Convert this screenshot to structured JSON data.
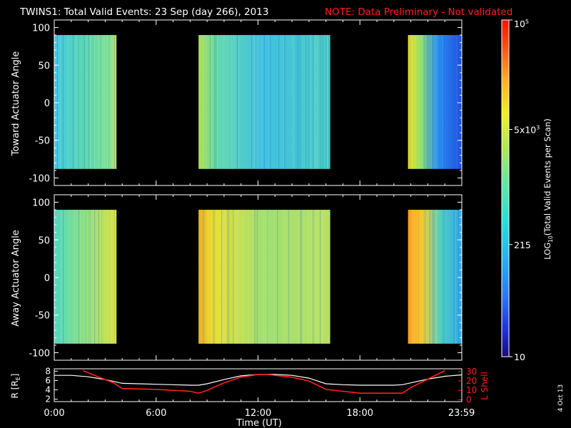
{
  "header": {
    "title": "TWINS1: Total Valid Events: 23 Sep (day 266), 2013",
    "note": "NOTE: Data Preliminary - Not validated"
  },
  "side_date": "4 Oct 13",
  "colors": {
    "background": "#000000",
    "note": "#ff2020",
    "orbit_r": "#ffffff",
    "orbit_lshell": "#ff2020"
  },
  "colorbar": {
    "label_prefix": "LOG",
    "label_sub": "10",
    "label_suffix": "(Total Valid Events per Scan)",
    "ticks": [
      {
        "text": "10",
        "value": 10
      },
      {
        "text": "215",
        "value": 215
      },
      {
        "text": "5x10",
        "sup": "3",
        "value": 5000
      },
      {
        "text": "10",
        "sup": "5",
        "value": 100000
      }
    ],
    "range": [
      10,
      100000
    ],
    "scale": "log",
    "colormap": "rainbow"
  },
  "chart_data": [
    {
      "type": "heatmap",
      "ylabel": "Toward Actuator Angle",
      "ylim": [
        -110,
        110
      ],
      "yticks": [
        "100",
        "50",
        "0",
        "-50",
        "-100"
      ],
      "data_y_range": [
        -88,
        90
      ],
      "xlim_hours": [
        0,
        24
      ],
      "intervals": [
        {
          "start": "0:00",
          "end": "3:40",
          "level": "green-cyan"
        },
        {
          "start": "8:30",
          "end": "16:15",
          "level": "green-cyan"
        },
        {
          "start": "20:50",
          "end": "23:59",
          "level": "yellow to blue"
        }
      ]
    },
    {
      "type": "heatmap",
      "ylabel": "Away Actuator Angle",
      "ylim": [
        -110,
        110
      ],
      "yticks": [
        "100",
        "50",
        "0",
        "-50",
        "-100"
      ],
      "data_y_range": [
        -88,
        90
      ],
      "xlim_hours": [
        0,
        24
      ],
      "intervals": [
        {
          "start": "0:00",
          "end": "3:40",
          "level": "green-yellow"
        },
        {
          "start": "8:30",
          "end": "16:15",
          "level": "yellow-green"
        },
        {
          "start": "20:50",
          "end": "23:59",
          "level": "orange to cyan"
        }
      ]
    },
    {
      "type": "line",
      "xlabel": "Time (UT)",
      "xticks": [
        "0:00",
        "6:00",
        "12:00",
        "18:00",
        "23:59"
      ],
      "xlim_hours": [
        0,
        24
      ],
      "y_left": {
        "label": "R [R",
        "label_sub": "E",
        "label_close": "]",
        "ticks": [
          "8",
          "6",
          "4",
          "2"
        ],
        "range": [
          1.5,
          8.5
        ]
      },
      "y_right": {
        "label": "L Shell",
        "ticks": [
          "30",
          "20",
          "10",
          "0"
        ],
        "range": [
          -2,
          33
        ]
      },
      "series": [
        {
          "axis": "left",
          "x": [
            0,
            1,
            2,
            3,
            3.5,
            4,
            5,
            6,
            7,
            8,
            8.5,
            9,
            10,
            11,
            12,
            13,
            14,
            15,
            15.5,
            16,
            17,
            18,
            19,
            20,
            20.5,
            21,
            22,
            23,
            24
          ],
          "y": [
            7.1,
            7.1,
            6.8,
            6.2,
            5.8,
            5.4,
            5.3,
            5.2,
            5.1,
            5.0,
            5.0,
            5.3,
            6.2,
            7.0,
            7.3,
            7.3,
            7.1,
            6.5,
            5.9,
            5.3,
            5.1,
            5.0,
            5.0,
            5.0,
            5.1,
            5.5,
            6.3,
            6.9,
            7.2
          ]
        },
        {
          "axis": "right",
          "x": [
            1.7,
            2.5,
            3.5,
            4,
            6,
            8,
            8.5,
            9,
            10,
            11,
            12,
            12.5,
            13,
            14,
            15,
            16,
            17,
            18,
            19,
            20,
            20.5,
            21,
            22,
            23
          ],
          "y": [
            31,
            25,
            18,
            12,
            11,
            9,
            7,
            10,
            18,
            24,
            27,
            27,
            26,
            24,
            20,
            11,
            9,
            7,
            7,
            7,
            7,
            13,
            22,
            31
          ]
        }
      ]
    }
  ]
}
